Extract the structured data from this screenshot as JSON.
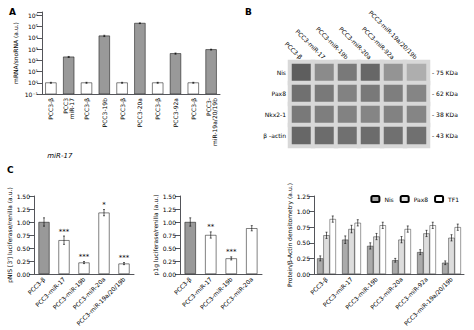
{
  "chart_data": [
    {
      "type": "bar",
      "title": "A",
      "ylabel": "mRNA/snoRNA (a.u.)",
      "categories": [
        "PCC3-β",
        "PCC3\nmiR-17",
        "PCC3-β",
        "PCC3-19b",
        "PCC3-β",
        "PCC3-20a",
        "PCC3-β",
        "PCC3-92a",
        "PCC3-β",
        "PCC3-\nmiR-19a/20/19b"
      ],
      "values": [
        1.0,
        200,
        1.0,
        15000,
        1.0,
        200000,
        1.0,
        400,
        1.0,
        900
      ],
      "errors": [
        0.1,
        20,
        0.1,
        2000,
        0.1,
        15000,
        0.1,
        50,
        0.1,
        80
      ],
      "colors": [
        "#ffffff",
        "#999999",
        "#ffffff",
        "#999999",
        "#ffffff",
        "#999999",
        "#ffffff",
        "#999999",
        "#ffffff",
        "#999999"
      ],
      "log": "y",
      "ylim": [
        0.1,
        2000000
      ],
      "yticks": [
        {
          "value": 0.1,
          "label": "10⁻¹"
        },
        {
          "value": 1,
          "label": "10⁰"
        },
        {
          "value": 10,
          "label": "10¹"
        },
        {
          "value": 100,
          "label": "10²"
        },
        {
          "value": 1000,
          "label": "10³"
        },
        {
          "value": 10000,
          "label": "10⁴"
        },
        {
          "value": 100000,
          "label": "10⁵"
        },
        {
          "value": 1000000,
          "label": "10⁶"
        }
      ],
      "grid": false,
      "annotations": [
        "miR-17"
      ]
    },
    {
      "type": "heatmap",
      "title": "B",
      "categories": [
        "PCC3-β",
        "PCC3-miR-17",
        "PCC3-miR-19b",
        "PCC3-miR-20a",
        "PCC3-miR-92a",
        "PCC3-miR-19a/20/19b"
      ],
      "rows": [
        "Nis",
        "Pax8",
        "Nkx2-1",
        "β -actin"
      ],
      "right_labels": [
        "- 75 KDa",
        "- 62 KDa",
        "- 38 KDa",
        "- 43 KDa"
      ],
      "cells": [
        [
          0.9,
          0.65,
          0.75,
          0.85,
          0.6,
          0.45
        ],
        [
          0.8,
          0.75,
          0.7,
          0.75,
          0.72,
          0.68
        ],
        [
          0.75,
          0.72,
          0.7,
          0.68,
          0.7,
          0.68
        ],
        [
          0.85,
          0.82,
          0.8,
          0.82,
          0.8,
          0.8
        ]
      ]
    },
    {
      "type": "bar",
      "title": "C",
      "ylabel": "pNIS [3'] luciferase/renilla (a.u.)",
      "categories": [
        "PCC3-β",
        "PCC3-miR-17",
        "PCC3-miR-19b",
        "PCC3-miR-20a",
        "PCC3-miR-19a/20/19b"
      ],
      "values": [
        1.0,
        0.65,
        0.22,
        1.18,
        0.2
      ],
      "errors": [
        0.08,
        0.08,
        0.02,
        0.06,
        0.02
      ],
      "colors": [
        "#999999",
        "#ffffff",
        "#ffffff",
        "#ffffff",
        "#ffffff"
      ],
      "bar_labels": [
        null,
        "***",
        "***",
        "*",
        "***"
      ],
      "ylim": [
        0,
        1.5
      ],
      "yticks": [
        {
          "value": 0,
          "label": "0.00"
        },
        0.25,
        {
          "value": 0.5,
          "label": "0.50"
        },
        0.75,
        {
          "value": 1.0,
          "label": "1.00"
        },
        1.25,
        {
          "value": 1.5,
          "label": "1.50"
        }
      ],
      "grid": false
    },
    {
      "type": "bar",
      "ylabel": "p1g luciferase/renilla (a.u.)",
      "categories": [
        "PCC3-β",
        "PCC3-miR-17",
        "PCC3-miR-19b",
        "PCC3-miR-20a"
      ],
      "values": [
        1.0,
        0.75,
        0.3,
        0.88
      ],
      "errors": [
        0.08,
        0.06,
        0.03,
        0.05
      ],
      "colors": [
        "#999999",
        "#ffffff",
        "#ffffff",
        "#ffffff"
      ],
      "bar_labels": [
        null,
        "**",
        "***",
        null
      ],
      "ylim": [
        0,
        1.5
      ],
      "yticks": [
        {
          "value": 0,
          "label": "0.00"
        },
        0.25,
        {
          "value": 0.5,
          "label": "0.50"
        },
        0.75,
        {
          "value": 1.0,
          "label": "1.00"
        },
        1.25,
        {
          "value": 1.5,
          "label": "1.50"
        }
      ],
      "grid": false
    },
    {
      "type": "bar",
      "ylabel": "Protein/β-Actin densitometry (a.u.)",
      "categories": [
        "PCC3-β",
        "PCC3-miR-17",
        "PCC3-miR-19b",
        "PCC3-miR-20a",
        "PCC3-miR-92a",
        "PCC3-miR-19a/20/19b"
      ],
      "series": [
        {
          "name": "Nis",
          "color": "#aaaaaa",
          "values": [
            0.25,
            0.55,
            0.45,
            0.22,
            0.35,
            0.18
          ],
          "errors": [
            0.04,
            0.06,
            0.05,
            0.03,
            0.04,
            0.03
          ]
        },
        {
          "name": "Pax8",
          "color": "#dddddd",
          "values": [
            0.62,
            0.72,
            0.6,
            0.55,
            0.65,
            0.58
          ],
          "errors": [
            0.05,
            0.06,
            0.05,
            0.05,
            0.05,
            0.05
          ]
        },
        {
          "name": "TF1",
          "color": "#ffffff",
          "values": [
            0.88,
            0.82,
            0.78,
            0.72,
            0.78,
            0.75
          ],
          "errors": [
            0.05,
            0.05,
            0.05,
            0.05,
            0.05,
            0.05
          ]
        }
      ],
      "ylim": [
        0,
        1.25
      ],
      "yticks": [
        {
          "value": 0,
          "label": "0.00"
        },
        0.25,
        {
          "value": 0.5,
          "label": "0.50"
        },
        0.75,
        {
          "value": 1.0,
          "label": "1.00"
        },
        1.25
      ],
      "grid": false,
      "legend": "upper right"
    }
  ]
}
